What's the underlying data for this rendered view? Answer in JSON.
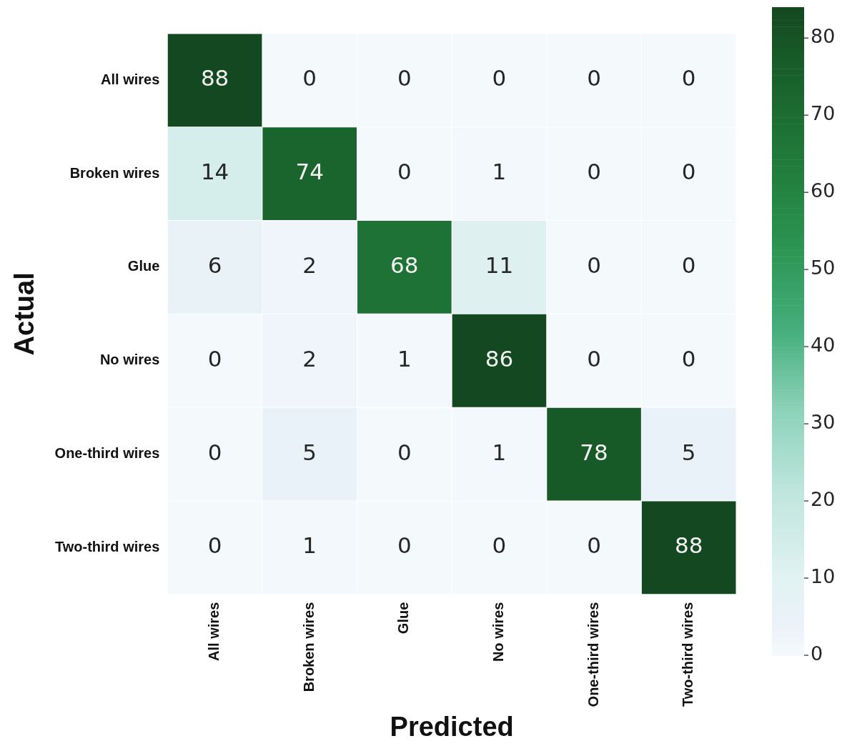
{
  "chart_data": {
    "type": "heatmap",
    "xlabel": "Predicted",
    "ylabel": "Actual",
    "categories": [
      "All wires",
      "Broken wires",
      "Glue",
      "No wires",
      "One-third wires",
      "Two-third wires"
    ],
    "y_categories": [
      "All wires",
      "Broken wires",
      "Glue",
      "No wires",
      "One-third wires",
      "Two-third wires"
    ],
    "cells": [
      [
        88,
        0,
        0,
        0,
        0,
        0
      ],
      [
        14,
        74,
        0,
        1,
        0,
        0
      ],
      [
        6,
        2,
        68,
        11,
        0,
        0
      ],
      [
        0,
        2,
        1,
        86,
        0,
        0
      ],
      [
        0,
        5,
        0,
        1,
        78,
        5
      ],
      [
        0,
        1,
        0,
        0,
        0,
        88
      ]
    ],
    "data_labels": true,
    "clim": [
      0,
      84
    ],
    "cticks": [
      0,
      10,
      20,
      30,
      40,
      50,
      60,
      70,
      80
    ]
  }
}
